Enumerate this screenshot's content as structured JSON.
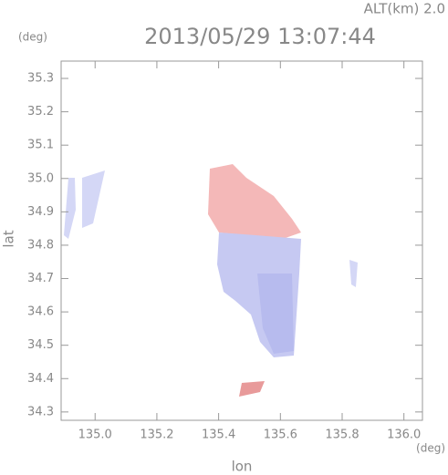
{
  "chart_data": {
    "type": "image",
    "title": "2013/05/29 13:07:44",
    "altitude_label": "ALT(km) 2.0",
    "xlabel": "lon",
    "ylabel": "lat",
    "xunit": "(deg)",
    "yunit": "(deg)",
    "xlim": [
      134.89,
      136.06
    ],
    "ylim": [
      34.275,
      35.352
    ],
    "xticks": [
      {
        "value": 135,
        "label": "135.0"
      },
      135.2,
      135.4,
      135.6,
      135.8,
      {
        "value": 136,
        "label": "136.0"
      }
    ],
    "yticks": [
      34.3,
      34.4,
      34.5,
      34.6,
      34.7,
      34.8,
      34.9,
      {
        "value": 35,
        "label": "35.0"
      },
      35.1,
      35.2,
      35.3
    ]
  }
}
